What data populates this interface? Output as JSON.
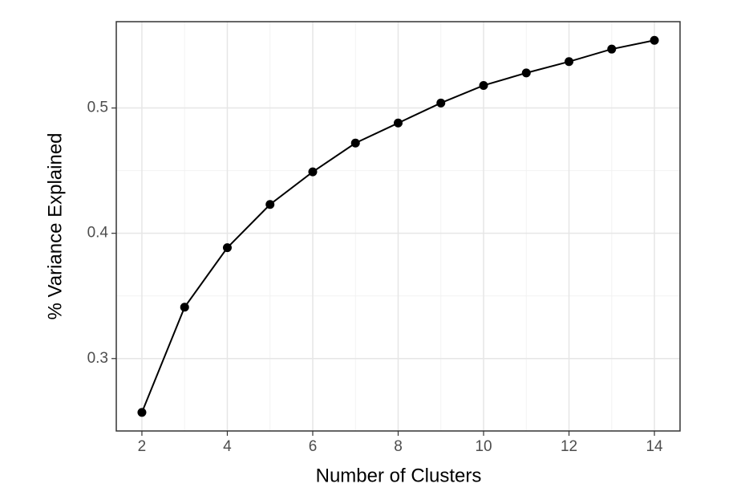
{
  "chart_data": {
    "type": "line",
    "x_label": "Number of Clusters",
    "y_label": "% Variance Explained",
    "x": [
      2,
      3,
      4,
      5,
      6,
      7,
      8,
      9,
      10,
      11,
      12,
      13,
      14
    ],
    "series": [
      {
        "color": "#000000",
        "values": [
          0.257,
          0.341,
          0.3885,
          0.423,
          0.449,
          0.472,
          0.488,
          0.504,
          0.518,
          0.528,
          0.537,
          0.547,
          0.554
        ]
      }
    ],
    "xlim": [
      1.4,
      14.6
    ],
    "xticks": [
      2,
      4,
      6,
      8,
      10,
      12,
      14
    ],
    "ylim": [
      0.2422,
      0.5689
    ],
    "yticks": [
      0.3,
      0.4,
      0.5
    ],
    "grid": true,
    "markers": true
  }
}
